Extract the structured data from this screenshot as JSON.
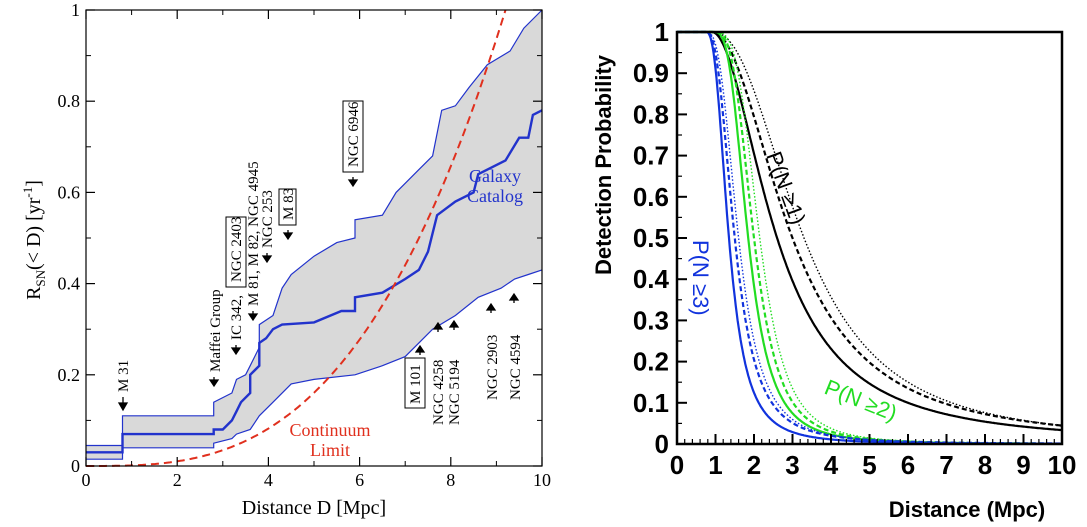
{
  "chart_data": [
    {
      "type": "area",
      "xlabel": "Distance D [Mpc]",
      "ylabel": "R_SN(< D) [yr^-1]",
      "xlim": [
        0,
        10
      ],
      "ylim": [
        0,
        1
      ],
      "x_ticks": [
        "0",
        "2",
        "4",
        "6",
        "8",
        "10"
      ],
      "y_ticks": [
        "0",
        "0.2",
        "0.4",
        "0.6",
        "0.8",
        "1"
      ],
      "grid": false,
      "series": [
        {
          "name": "Galaxy Catalog",
          "color": "#2233cc",
          "points": [
            [
              0,
              0.03
            ],
            [
              0.8,
              0.03
            ],
            [
              0.8,
              0.07
            ],
            [
              2.8,
              0.07
            ],
            [
              2.8,
              0.08
            ],
            [
              3.0,
              0.08
            ],
            [
              3.2,
              0.1
            ],
            [
              3.3,
              0.12
            ],
            [
              3.4,
              0.14
            ],
            [
              3.6,
              0.16
            ],
            [
              3.6,
              0.2
            ],
            [
              3.8,
              0.22
            ],
            [
              3.8,
              0.27
            ],
            [
              3.95,
              0.28
            ],
            [
              4.1,
              0.3
            ],
            [
              4.3,
              0.31
            ],
            [
              5,
              0.315
            ],
            [
              5.6,
              0.34
            ],
            [
              5.9,
              0.34
            ],
            [
              5.9,
              0.37
            ],
            [
              6.5,
              0.38
            ],
            [
              7,
              0.41
            ],
            [
              7.3,
              0.43
            ],
            [
              7.5,
              0.47
            ],
            [
              7.7,
              0.55
            ],
            [
              8.1,
              0.58
            ],
            [
              8.5,
              0.6
            ],
            [
              8.6,
              0.64
            ],
            [
              9.2,
              0.67
            ],
            [
              9.5,
              0.72
            ],
            [
              9.7,
              0.72
            ],
            [
              9.8,
              0.77
            ],
            [
              10,
              0.78
            ]
          ]
        },
        {
          "name": "",
          "color": "#2233cc",
          "points": [
            [
              0,
              0.045
            ],
            [
              0.8,
              0.045
            ],
            [
              0.8,
              0.11
            ],
            [
              2.8,
              0.11
            ],
            [
              2.8,
              0.14
            ],
            [
              3.2,
              0.16
            ],
            [
              3.3,
              0.19
            ],
            [
              3.5,
              0.2
            ],
            [
              3.6,
              0.22
            ],
            [
              3.8,
              0.26
            ],
            [
              3.8,
              0.31
            ],
            [
              4.1,
              0.33
            ],
            [
              4.3,
              0.39
            ],
            [
              4.5,
              0.42
            ],
            [
              5,
              0.46
            ],
            [
              5.5,
              0.49
            ],
            [
              5.9,
              0.5
            ],
            [
              5.9,
              0.54
            ],
            [
              6.5,
              0.55
            ],
            [
              6.8,
              0.6
            ],
            [
              7,
              0.62
            ],
            [
              7.3,
              0.65
            ],
            [
              7.6,
              0.68
            ],
            [
              7.8,
              0.78
            ],
            [
              8.1,
              0.79
            ],
            [
              8.4,
              0.83
            ],
            [
              8.8,
              0.88
            ],
            [
              9.3,
              0.91
            ],
            [
              9.6,
              0.96
            ],
            [
              10,
              1.0
            ]
          ]
        },
        {
          "name": "",
          "color": "#2233cc",
          "points": [
            [
              0,
              0.015
            ],
            [
              0.8,
              0.015
            ],
            [
              0.8,
              0.04
            ],
            [
              2.8,
              0.04
            ],
            [
              2.8,
              0.05
            ],
            [
              3.2,
              0.06
            ],
            [
              3.3,
              0.07
            ],
            [
              3.6,
              0.08
            ],
            [
              3.8,
              0.11
            ],
            [
              4.1,
              0.14
            ],
            [
              4.5,
              0.18
            ],
            [
              5,
              0.19
            ],
            [
              5.9,
              0.2
            ],
            [
              6.5,
              0.22
            ],
            [
              7,
              0.24
            ],
            [
              7.3,
              0.27
            ],
            [
              7.6,
              0.3
            ],
            [
              8.1,
              0.33
            ],
            [
              8.6,
              0.37
            ],
            [
              9.1,
              0.39
            ],
            [
              9.4,
              0.41
            ],
            [
              9.7,
              0.42
            ],
            [
              10,
              0.43
            ]
          ]
        },
        {
          "name": "Continuum Limit",
          "color": "#e0301e",
          "dashed": true,
          "curve": "y = (x/9.2)^3"
        }
      ],
      "annotations": [
        {
          "text": "M 31",
          "boxed": false,
          "x": 0.8,
          "y": 0.14
        },
        {
          "text": "Maffei Group",
          "boxed": false,
          "x": 2.8,
          "y": 0.2
        },
        {
          "text": "IC 342,",
          "boxed": false,
          "x": 3.3,
          "y": 0.25
        },
        {
          "text": "NGC 2403",
          "boxed": true,
          "x": 3.3,
          "y": 0.25
        },
        {
          "text": "M 81, M 82, NGC 4945",
          "boxed": false,
          "x": 3.8,
          "y": 0.34
        },
        {
          "text": "NGC 253",
          "boxed": false,
          "x": 3.95,
          "y": 0.36
        },
        {
          "text": "M 83",
          "boxed": true,
          "x": 4.4,
          "y": 0.5
        },
        {
          "text": "NGC 6946",
          "boxed": true,
          "x": 5.9,
          "y": 0.64
        },
        {
          "text": "M 101",
          "boxed": true,
          "x": 7.4,
          "y": 0.25
        },
        {
          "text": "NGC 4258",
          "boxed": false,
          "x": 7.8,
          "y": 0.3
        },
        {
          "text": "NGC 5194",
          "boxed": false,
          "x": 8.0,
          "y": 0.31
        },
        {
          "text": "NGC 2903",
          "boxed": false,
          "x": 8.9,
          "y": 0.33
        },
        {
          "text": "NGC 4594",
          "boxed": false,
          "x": 9.3,
          "y": 0.38
        }
      ],
      "labels": {
        "galaxy_line1": "Galaxy",
        "galaxy_line2": "Catalog",
        "continuum_line1": "Continuum",
        "continuum_line2": "Limit"
      }
    },
    {
      "type": "line",
      "xlabel": "Distance (Mpc)",
      "ylabel": "Detection Probability",
      "xlim": [
        0,
        10
      ],
      "ylim": [
        0,
        1
      ],
      "x_ticks": [
        "0",
        "1",
        "2",
        "3",
        "4",
        "5",
        "6",
        "7",
        "8",
        "9",
        "10"
      ],
      "y_ticks": [
        "0",
        "0.1",
        "0.2",
        "0.3",
        "0.4",
        "0.5",
        "0.6",
        "0.7",
        "0.8",
        "0.9",
        "1"
      ],
      "grid": false,
      "series": [
        {
          "name": "P(N ≥1)",
          "color": "#000000",
          "styles": [
            "solid",
            "dashed",
            "dotted"
          ],
          "d50": [
            2.6,
            3.0,
            3.3
          ],
          "k": [
            1.15,
            1.1,
            1.0
          ]
        },
        {
          "name": "P(N ≥2)",
          "color": "#22dd22",
          "styles": [
            "solid",
            "dashed",
            "dotted"
          ],
          "d50": [
            1.85,
            2.0,
            2.15
          ],
          "k": [
            0.85,
            0.8,
            0.75
          ]
        },
        {
          "name": "P(N ≥3)",
          "color": "#1133dd",
          "styles": [
            "solid",
            "dashed",
            "dotted"
          ],
          "d50": [
            1.35,
            1.5,
            1.6
          ],
          "k": [
            0.32,
            0.32,
            0.3
          ]
        }
      ],
      "labels": {
        "p1": "P(N ≥1)",
        "p2": "P(N ≥2)",
        "p3": "P(N ≥3)"
      }
    }
  ]
}
